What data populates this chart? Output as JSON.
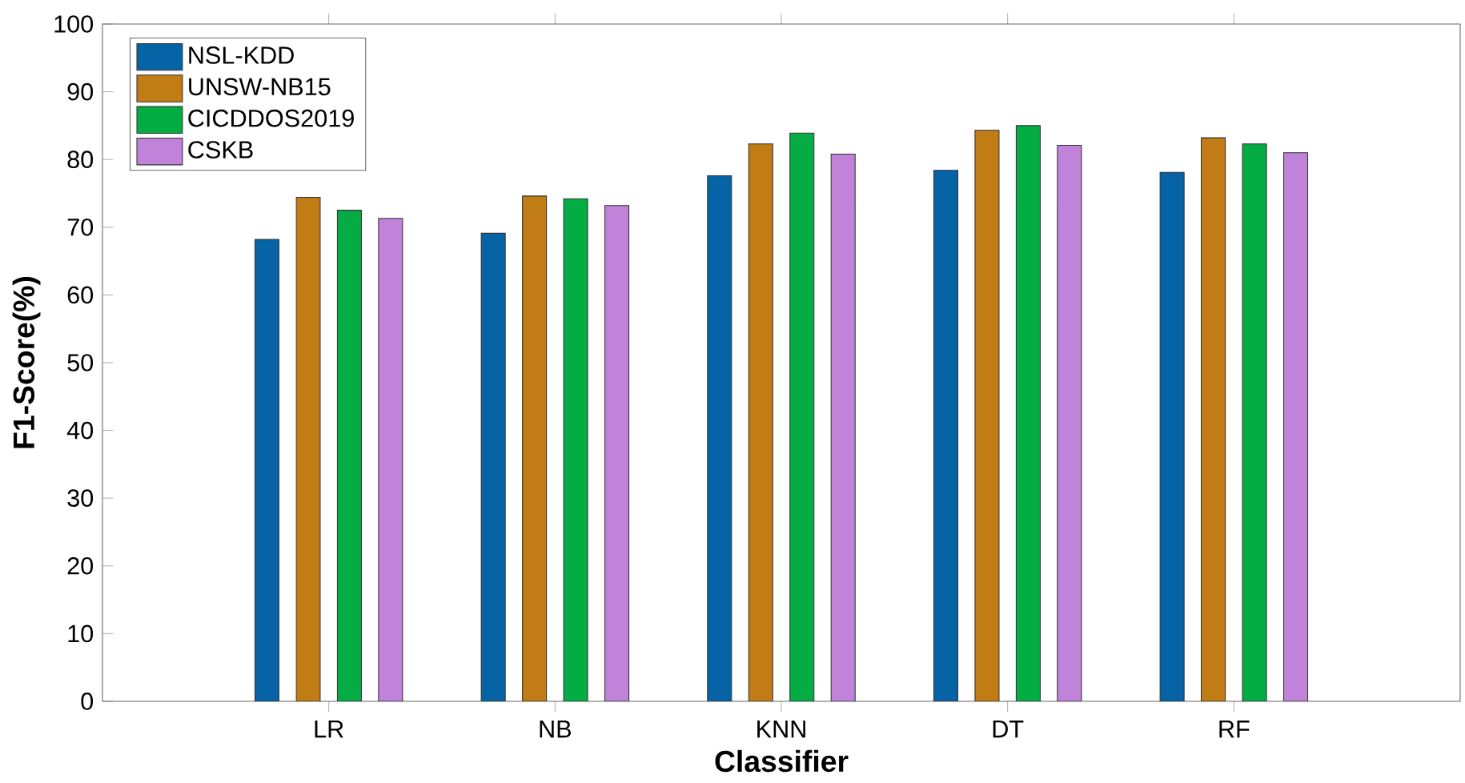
{
  "chart_data": {
    "type": "bar",
    "xlabel": "Classifier",
    "ylabel": "F1-Score(%)",
    "categories": [
      "LR",
      "NB",
      "KNN",
      "DT",
      "RF"
    ],
    "series": [
      {
        "name": "NSL-KDD",
        "color": "#0563a6",
        "values": [
          68.2,
          69.1,
          77.6,
          78.4,
          78.1
        ]
      },
      {
        "name": "UNSW-NB15",
        "color": "#c27c15",
        "values": [
          74.4,
          74.6,
          82.3,
          84.3,
          83.2
        ]
      },
      {
        "name": "CICDDOS2019",
        "color": "#04ad44",
        "values": [
          72.5,
          74.2,
          83.9,
          85.0,
          82.3
        ]
      },
      {
        "name": "CSKB",
        "color": "#c182da",
        "values": [
          71.3,
          73.2,
          80.8,
          82.1,
          81.0
        ]
      }
    ],
    "ylim": [
      0,
      100
    ],
    "yticks": [
      0,
      10,
      20,
      30,
      40,
      50,
      60,
      70,
      80,
      90,
      100
    ],
    "grid": false,
    "legend": "top left"
  }
}
